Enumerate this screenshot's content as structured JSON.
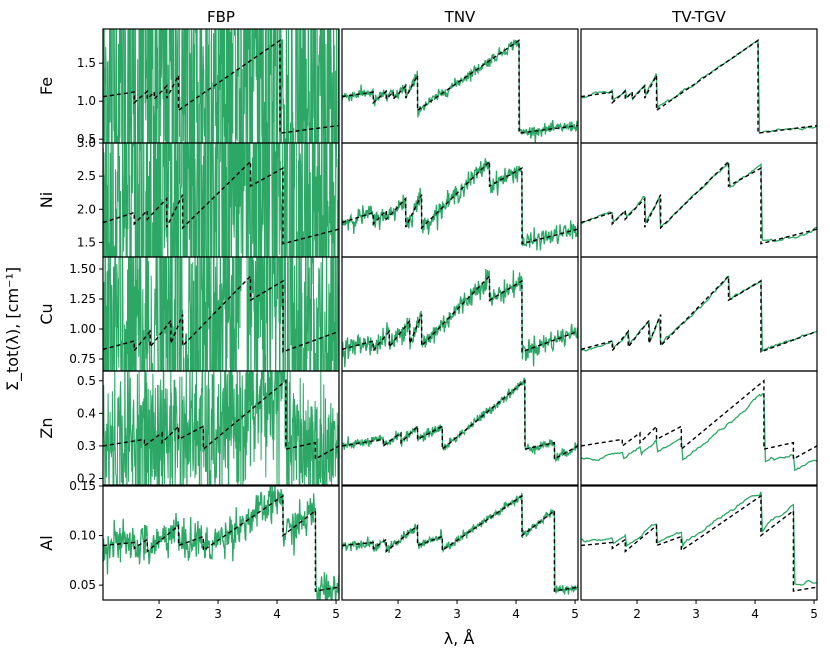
{
  "figure": {
    "ylabel": "Σ_tot(λ), [cm⁻¹]",
    "xlabel": "λ, Å"
  },
  "chart_data": {
    "type": "line",
    "layout": "grid 5 rows × 3 columns",
    "columns": [
      "FBP",
      "TNV",
      "TV-TGV"
    ],
    "rows": [
      "Fe",
      "Ni",
      "Cu",
      "Zn",
      "Al"
    ],
    "xlim": [
      1.05,
      5.05
    ],
    "xticks": [
      2,
      3,
      4,
      5
    ],
    "xlabel": "λ, Å",
    "ylabel": "Σ_tot(λ), [cm⁻¹]",
    "colors": {
      "reconstruction": "#2ca766",
      "reference": "#000000"
    },
    "panels": [
      {
        "element": "Fe",
        "ylim": [
          0.45,
          1.95
        ],
        "yticks": [
          {
            "v": 0.5,
            "label": "0.5"
          },
          {
            "v": 1.0,
            "label": "1.0"
          },
          {
            "v": 1.5,
            "label": "1.5"
          }
        ],
        "reference": {
          "style": "dashed",
          "segments": [
            [
              [
                1.05,
                1.06
              ],
              [
                1.58,
                1.12
              ]
            ],
            [
              [
                1.58,
                0.98
              ],
              [
                1.8,
                1.13
              ]
            ],
            [
              [
                1.8,
                1.03
              ],
              [
                1.92,
                1.12
              ]
            ],
            [
              [
                1.92,
                1.03
              ],
              [
                2.13,
                1.2
              ]
            ],
            [
              [
                2.13,
                1.04
              ],
              [
                2.33,
                1.34
              ]
            ],
            [
              [
                2.33,
                0.88
              ],
              [
                4.05,
                1.8
              ]
            ],
            [
              [
                4.05,
                0.58
              ],
              [
                5.05,
                0.68
              ]
            ]
          ]
        },
        "reconstructions": {
          "FBP": {
            "offset": 0.0,
            "noise": 3.0
          },
          "TNV": {
            "offset": 0.0,
            "noise": 0.07
          },
          "TV-TGV": {
            "offset": 0.0,
            "noise": 0.0
          }
        }
      },
      {
        "element": "Ni",
        "ylim": [
          1.28,
          3.0
        ],
        "yticks": [
          {
            "v": 1.5,
            "label": "1.5"
          },
          {
            "v": 2.0,
            "label": "2.0"
          },
          {
            "v": 2.5,
            "label": "2.5"
          },
          {
            "v": 3.0,
            "label": "3.0"
          }
        ],
        "reference": {
          "style": "dashed",
          "segments": [
            [
              [
                1.05,
                1.8
              ],
              [
                1.58,
                1.95
              ]
            ],
            [
              [
                1.58,
                1.78
              ],
              [
                1.8,
                1.98
              ]
            ],
            [
              [
                1.8,
                1.85
              ],
              [
                2.13,
                2.16
              ]
            ],
            [
              [
                2.13,
                1.73
              ],
              [
                2.4,
                2.22
              ]
            ],
            [
              [
                2.4,
                1.72
              ],
              [
                3.55,
                2.72
              ]
            ],
            [
              [
                3.55,
                2.35
              ],
              [
                4.1,
                2.62
              ]
            ],
            [
              [
                4.1,
                1.48
              ],
              [
                5.05,
                1.7
              ]
            ]
          ]
        },
        "reconstructions": {
          "FBP": {
            "offset": 0.0,
            "noise": 3.5
          },
          "TNV": {
            "offset": 0.0,
            "noise": 0.12
          },
          "TV-TGV": {
            "offset": 0.0,
            "noise": 0.0
          }
        }
      },
      {
        "element": "Cu",
        "ylim": [
          0.65,
          1.6
        ],
        "yticks": [
          {
            "v": 0.75,
            "label": "0.75"
          },
          {
            "v": 1.0,
            "label": "1.00"
          },
          {
            "v": 1.25,
            "label": "1.25"
          },
          {
            "v": 1.5,
            "label": "1.50"
          }
        ],
        "reference": {
          "style": "dashed",
          "segments": [
            [
              [
                1.05,
                0.83
              ],
              [
                1.58,
                0.9
              ]
            ],
            [
              [
                1.58,
                0.82
              ],
              [
                1.85,
                0.98
              ]
            ],
            [
              [
                1.85,
                0.85
              ],
              [
                2.2,
                1.07
              ]
            ],
            [
              [
                2.2,
                0.88
              ],
              [
                2.4,
                1.12
              ]
            ],
            [
              [
                2.4,
                0.86
              ],
              [
                3.55,
                1.44
              ]
            ],
            [
              [
                3.55,
                1.24
              ],
              [
                4.1,
                1.4
              ]
            ],
            [
              [
                4.1,
                0.81
              ],
              [
                5.05,
                0.98
              ]
            ]
          ]
        },
        "reconstructions": {
          "FBP": {
            "offset": 0.0,
            "noise": 2.5
          },
          "TNV": {
            "offset": 0.0,
            "noise": 0.14
          },
          "TV-TGV": {
            "offset": 0.0,
            "noise": 0.0
          }
        }
      },
      {
        "element": "Zn",
        "ylim": [
          0.18,
          0.53
        ],
        "yticks": [
          {
            "v": 0.2,
            "label": "0.2"
          },
          {
            "v": 0.3,
            "label": "0.3"
          },
          {
            "v": 0.4,
            "label": "0.4"
          },
          {
            "v": 0.5,
            "label": "0.5"
          }
        ],
        "reference": {
          "style": "dashed",
          "segments": [
            [
              [
                1.05,
                0.3
              ],
              [
                1.75,
                0.32
              ]
            ],
            [
              [
                1.75,
                0.3
              ],
              [
                2.05,
                0.34
              ]
            ],
            [
              [
                2.05,
                0.31
              ],
              [
                2.33,
                0.36
              ]
            ],
            [
              [
                2.33,
                0.32
              ],
              [
                2.75,
                0.36
              ]
            ],
            [
              [
                2.75,
                0.29
              ],
              [
                4.15,
                0.5
              ]
            ],
            [
              [
                4.15,
                0.29
              ],
              [
                4.65,
                0.31
              ]
            ],
            [
              [
                4.65,
                0.26
              ],
              [
                5.05,
                0.3
              ]
            ]
          ]
        },
        "reconstructions": {
          "FBP": {
            "offset": 0.0,
            "noise": 1.0
          },
          "TNV": {
            "offset": 0.0,
            "noise": 0.06
          },
          "TV-TGV": {
            "offset": -0.04,
            "noise": 0.0
          }
        }
      },
      {
        "element": "Al",
        "ylim": [
          0.035,
          0.15
        ],
        "yticks": [
          {
            "v": 0.05,
            "label": "0.05"
          },
          {
            "v": 0.1,
            "label": "0.10"
          },
          {
            "v": 0.15,
            "label": "0.15"
          }
        ],
        "reference": {
          "style": "dashed",
          "segments": [
            [
              [
                1.05,
                0.09
              ],
              [
                1.58,
                0.093
              ]
            ],
            [
              [
                1.58,
                0.087
              ],
              [
                1.8,
                0.096
              ]
            ],
            [
              [
                1.8,
                0.084
              ],
              [
                2.33,
                0.11
              ]
            ],
            [
              [
                2.33,
                0.09
              ],
              [
                2.75,
                0.099
              ]
            ],
            [
              [
                2.75,
                0.085
              ],
              [
                4.1,
                0.14
              ]
            ],
            [
              [
                4.1,
                0.1
              ],
              [
                4.65,
                0.125
              ]
            ],
            [
              [
                4.65,
                0.044
              ],
              [
                5.05,
                0.048
              ]
            ]
          ]
        },
        "reconstructions": {
          "FBP": {
            "offset": 0.0,
            "noise": 0.25
          },
          "TNV": {
            "offset": 0.0,
            "noise": 0.06
          },
          "TV-TGV": {
            "offset": 0.005,
            "noise": 0.0
          }
        }
      }
    ]
  }
}
